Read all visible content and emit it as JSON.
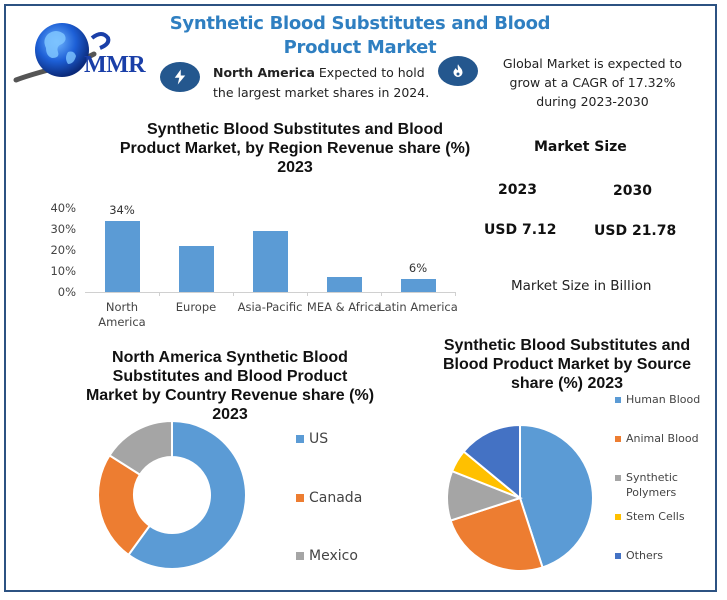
{
  "header": {
    "title": "Synthetic Blood Substitutes and Blood Product Market",
    "logo_text": "MMR",
    "logo_icon": "globe-icon"
  },
  "highlights": [
    {
      "icon": "lightning-bolt-icon",
      "bold": "North America",
      "text": " Expected to hold the largest market shares in 2024."
    },
    {
      "icon": "flame-icon",
      "text": "Global Market is expected to grow at a CAGR of 17.32% during 2023-2030"
    }
  ],
  "market_size": {
    "title": "Market Size",
    "years": [
      "2023",
      "2030"
    ],
    "values": [
      "USD 7.12",
      "USD 21.78"
    ],
    "note": "Market Size in Billion"
  },
  "colors": {
    "frame": "#2c5282",
    "title": "#2f7fc1",
    "badge": "#24578e",
    "bar": "#5b9bd5",
    "series": [
      "#5b9bd5",
      "#ed7d31",
      "#a5a5a5",
      "#ffc000",
      "#4472c4"
    ]
  },
  "chart_data": [
    {
      "type": "bar",
      "title": "Synthetic Blood Substitutes and Blood Product Market, by Region Revenue share (%) 2023",
      "categories": [
        "North America",
        "Europe",
        "Asia-Pacific",
        "MEA & Africa",
        "Latin America"
      ],
      "values": [
        34,
        22,
        29,
        7,
        6
      ],
      "data_labels": [
        "34%",
        "",
        "",
        "",
        "6%"
      ],
      "xlabel": "",
      "ylabel": "",
      "ylim": [
        0,
        40
      ],
      "yticks": [
        "40%",
        "30%",
        "20%",
        "10%",
        "0%"
      ],
      "grid": false,
      "legend": "none"
    },
    {
      "type": "pie",
      "variant": "donut",
      "title": "North America Synthetic Blood Substitutes and Blood Product Market by Country Revenue share (%) 2023",
      "categories": [
        "US",
        "Canada",
        "Mexico"
      ],
      "values": [
        60,
        24,
        16
      ],
      "legend_position": "right"
    },
    {
      "type": "pie",
      "title": "Synthetic Blood Substitutes and Blood Product Market by Source share (%) 2023",
      "categories": [
        "Human Blood",
        "Animal Blood",
        "Synthetic Polymers",
        "Stem Cells",
        "Others"
      ],
      "values": [
        45,
        25,
        11,
        5,
        14
      ],
      "legend_position": "right"
    }
  ]
}
